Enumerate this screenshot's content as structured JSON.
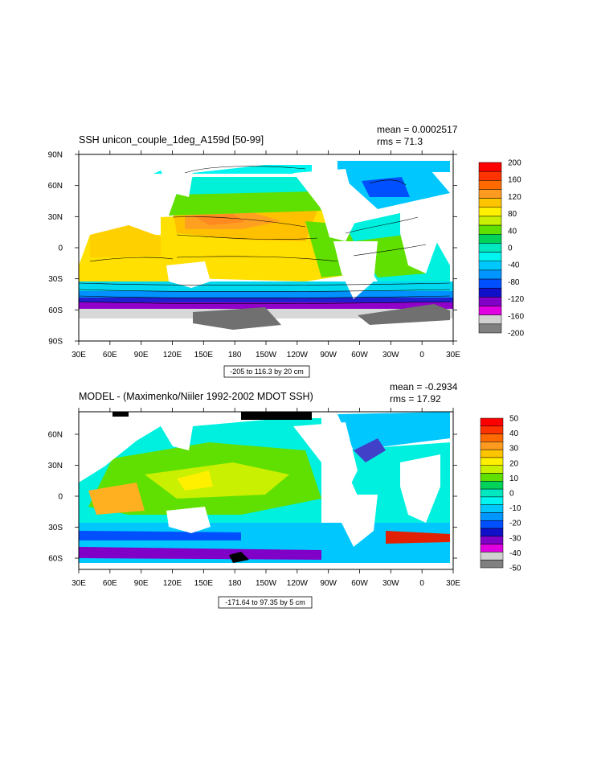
{
  "chart_data": [
    {
      "type": "heatmap",
      "title": "SSH unicon_couple_1deg_A159d [50-99]",
      "stats": {
        "mean": "mean = 0.0002517",
        "rms": "rms = 71.3"
      },
      "xticks": [
        "30E",
        "60E",
        "90E",
        "120E",
        "150E",
        "180",
        "150W",
        "120W",
        "90W",
        "60W",
        "30W",
        "0",
        "30E"
      ],
      "yticks": [
        "90N",
        "60N",
        "30N",
        "0",
        "30S",
        "60S",
        "90S"
      ],
      "xlim": [
        30,
        390
      ],
      "ylim": [
        -90,
        90
      ],
      "contour_info": "-205 to 116.3 by 20 cm",
      "colorbar": {
        "labels": [
          "200",
          "160",
          "120",
          "80",
          "40",
          "0",
          "-40",
          "-80",
          "-120",
          "-160",
          "-200"
        ],
        "colors": [
          "#ff0000",
          "#ff3300",
          "#ff6a00",
          "#ff9a20",
          "#ffc400",
          "#fff000",
          "#c8f000",
          "#60e000",
          "#00d25a",
          "#00e8c0",
          "#00f4f0",
          "#00c8ff",
          "#0096ff",
          "#0050ff",
          "#1010c8",
          "#8000c8",
          "#e000e0",
          "#d0d0d0",
          "#808080"
        ]
      }
    },
    {
      "type": "heatmap",
      "title": "MODEL - (Maximenko/Niiler 1992-2002 MDOT SSH)",
      "stats": {
        "mean": "mean = -0.2934",
        "rms": "rms = 17.92"
      },
      "xticks": [
        "30E",
        "60E",
        "90E",
        "120E",
        "150E",
        "180",
        "150W",
        "120W",
        "90W",
        "60W",
        "30W",
        "0",
        "30E"
      ],
      "yticks": [
        "60N",
        "30N",
        "0",
        "30S",
        "60S"
      ],
      "xlim": [
        30,
        390
      ],
      "ylim": [
        -75,
        75
      ],
      "contour_info": "-171.64 to 97.35 by 5 cm",
      "colorbar": {
        "labels": [
          "50",
          "40",
          "30",
          "20",
          "10",
          "0",
          "-10",
          "-20",
          "-30",
          "-40",
          "-50"
        ],
        "colors": [
          "#ff0000",
          "#ff3300",
          "#ff6a00",
          "#ff9a20",
          "#ffc400",
          "#fff000",
          "#c8f000",
          "#60e000",
          "#00d25a",
          "#00e8c0",
          "#00f4f0",
          "#00c8ff",
          "#0096ff",
          "#0050ff",
          "#1010c8",
          "#8000c8",
          "#e000e0",
          "#d0d0d0",
          "#808080"
        ]
      }
    }
  ]
}
